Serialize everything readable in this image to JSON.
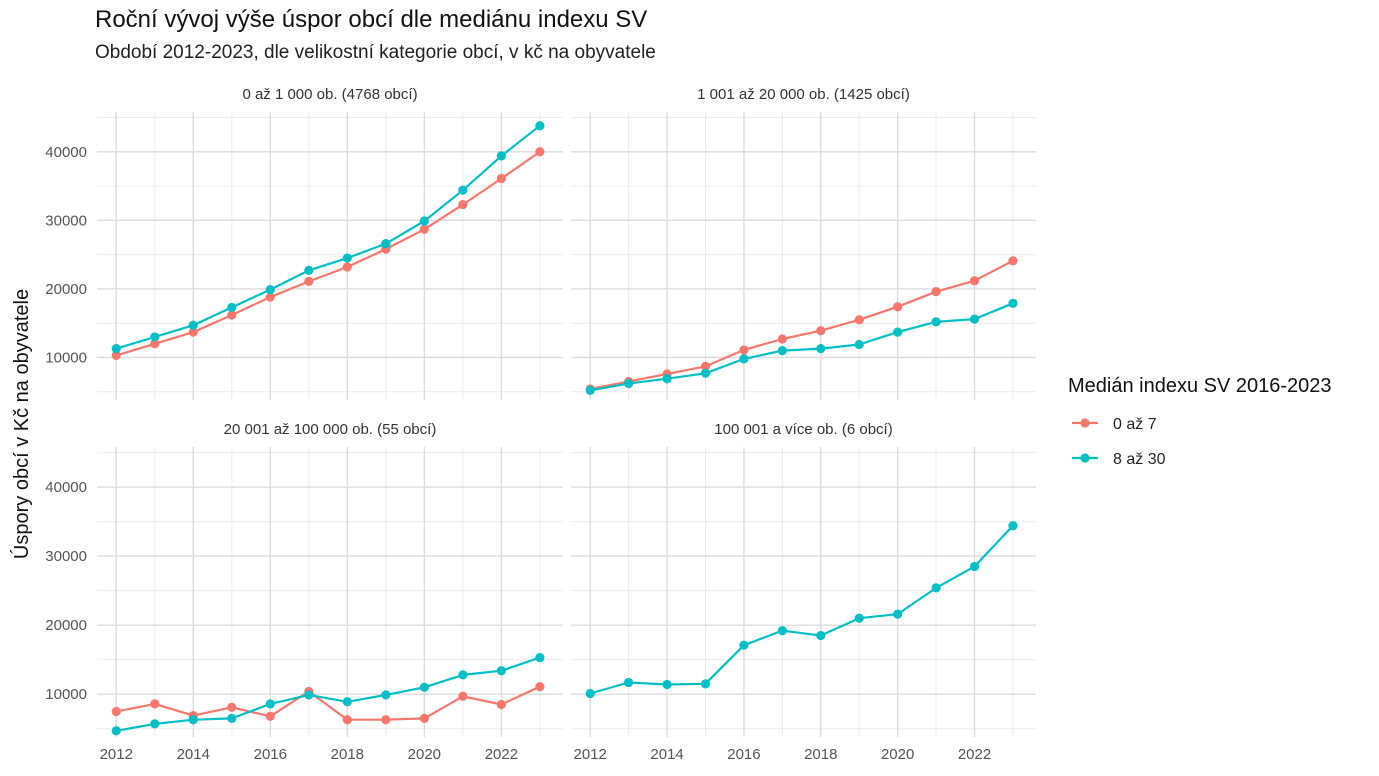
{
  "chart_data": {
    "type": "line",
    "title": "Roční vývoj výše úspor obcí dle mediánu indexu SV",
    "subtitle": "Období 2012-2023, dle velikostní kategorie obcí, v kč na obyvatele",
    "ylabel": "Úspory obcí v Kč na obyvatele",
    "xlabel": "",
    "xlim": [
      2011.5,
      2023.6
    ],
    "ylim": [
      3800,
      45800
    ],
    "x_ticks": [
      2012,
      2014,
      2016,
      2018,
      2020,
      2022
    ],
    "y_ticks": [
      10000,
      20000,
      30000,
      40000
    ],
    "x_tick_labels": [
      "2012",
      "2014",
      "2016",
      "2018",
      "2020",
      "2022"
    ],
    "y_tick_labels": [
      "10000",
      "20000",
      "30000",
      "40000"
    ],
    "grid": true,
    "legend": {
      "title": "Medián indexu SV 2016-2023",
      "position": "right",
      "items": [
        {
          "label": "0 až 7",
          "color": "#F8766D"
        },
        {
          "label": "8 až 30",
          "color": "#00BFC4"
        }
      ]
    },
    "x": [
      2012,
      2013,
      2014,
      2015,
      2016,
      2017,
      2018,
      2019,
      2020,
      2021,
      2022,
      2023
    ],
    "panels": [
      {
        "title": "0 až 1 000 ob. (4768 obcí)",
        "series": [
          {
            "name": "0 až 7",
            "color": "#F8766D",
            "values": [
              10300,
              12000,
              13700,
              16200,
              18800,
              21100,
              23200,
              25800,
              28700,
              32300,
              36100,
              40000
            ]
          },
          {
            "name": "8 až 30",
            "color": "#00BFC4",
            "values": [
              11300,
              13000,
              14700,
              17300,
              19900,
              22700,
              24500,
              26600,
              29900,
              34400,
              39400,
              43800
            ]
          }
        ]
      },
      {
        "title": "1 001 až 20 000 ob. (1425 obcí)",
        "series": [
          {
            "name": "0 až 7",
            "color": "#F8766D",
            "values": [
              5400,
              6500,
              7600,
              8700,
              11100,
              12700,
              13900,
              15500,
              17400,
              19600,
              21200,
              24100
            ]
          },
          {
            "name": "8 až 30",
            "color": "#00BFC4",
            "values": [
              5200,
              6200,
              6900,
              7700,
              9800,
              11000,
              11300,
              11900,
              13700,
              15200,
              15600,
              17900
            ]
          }
        ]
      },
      {
        "title": "20 001 až 100 000 ob. (55 obcí)",
        "series": [
          {
            "name": "0 až 7",
            "color": "#F8766D",
            "values": [
              7500,
              8600,
              6900,
              8100,
              6800,
              10400,
              6300,
              6300,
              6500,
              9700,
              8500,
              11100
            ]
          },
          {
            "name": "8 až 30",
            "color": "#00BFC4",
            "values": [
              4700,
              5700,
              6300,
              6500,
              8600,
              9900,
              8900,
              9900,
              11000,
              12800,
              13400,
              15300
            ]
          }
        ]
      },
      {
        "title": "100 001 a více ob. (6 obcí)",
        "series": [
          {
            "name": "8 až 30",
            "color": "#00BFC4",
            "values": [
              10100,
              11700,
              11400,
              11500,
              17100,
              19200,
              18500,
              21000,
              21600,
              25400,
              28500,
              34400
            ]
          }
        ]
      }
    ]
  }
}
